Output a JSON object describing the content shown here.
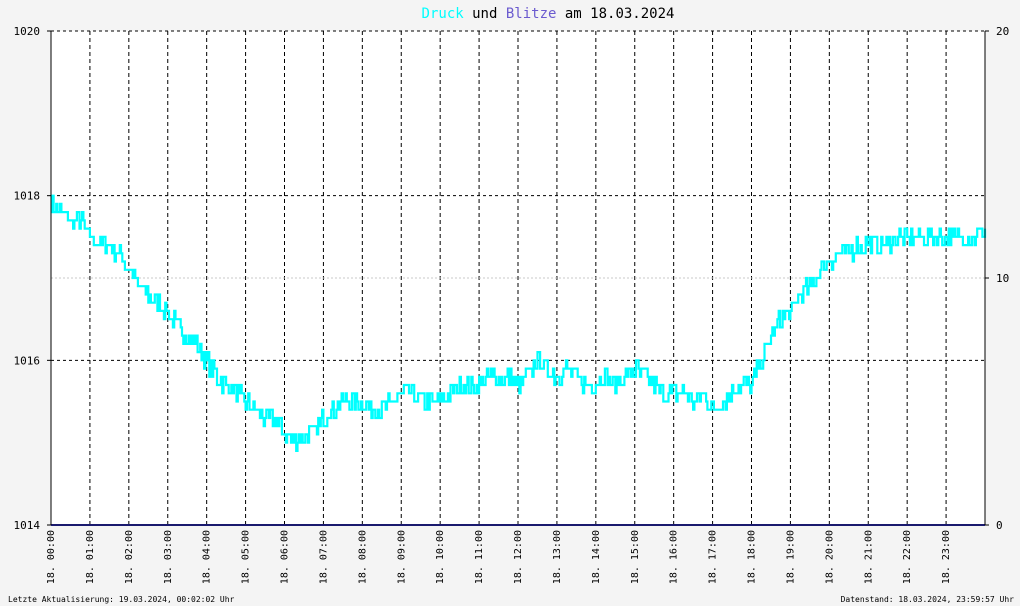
{
  "title": {
    "part1": "Druck",
    "part2": " und ",
    "part3": "Blitze",
    "part4": " am 18.03.2024"
  },
  "colors": {
    "druck": "#00ffff",
    "blitze": "#6b5bcf",
    "baseline": "#1a1a6e",
    "plot_bg": "#ffffff",
    "page_bg": "#f4f4f4",
    "grid": "#000000",
    "text": "#000000"
  },
  "footer": {
    "left": "Letzte Aktualisierung: 19.03.2024, 00:02:02 Uhr",
    "right": "Datenstand: 18.03.2024, 23:59:57 Uhr"
  },
  "chart_data": {
    "type": "line",
    "title": "Druck und Blitze am 18.03.2024",
    "y_left": {
      "min": 1014,
      "max": 1020,
      "ticks": [
        "1014",
        "1016",
        "1018",
        "1020"
      ]
    },
    "y_right": {
      "min": 0,
      "max": 20,
      "ticks": [
        "0",
        "10",
        "20"
      ]
    },
    "x_range_hours": [
      0,
      24
    ],
    "x_ticks": [
      "18. 00:00",
      "18. 01:00",
      "18. 02:00",
      "18. 03:00",
      "18. 04:00",
      "18. 05:00",
      "18. 06:00",
      "18. 07:00",
      "18. 08:00",
      "18. 09:00",
      "18. 10:00",
      "18. 11:00",
      "18. 12:00",
      "18. 13:00",
      "18. 14:00",
      "18. 15:00",
      "18. 16:00",
      "18. 17:00",
      "18. 18:00",
      "18. 19:00",
      "18. 20:00",
      "18. 21:00",
      "18. 22:00",
      "18. 23:00"
    ],
    "grid": true,
    "series": [
      {
        "name": "Druck",
        "axis": "left",
        "x": [
          0,
          0.25,
          0.5,
          0.75,
          1,
          1.25,
          1.5,
          1.75,
          2,
          2.25,
          2.5,
          2.75,
          3,
          3.25,
          3.5,
          3.75,
          4,
          4.25,
          4.5,
          4.75,
          5,
          5.25,
          5.5,
          5.75,
          6,
          6.25,
          6.5,
          6.75,
          7,
          7.25,
          7.5,
          7.75,
          8,
          8.25,
          8.5,
          8.75,
          9,
          9.25,
          9.5,
          9.75,
          10,
          10.25,
          10.5,
          10.75,
          11,
          11.25,
          11.5,
          11.75,
          12,
          12.25,
          12.5,
          12.75,
          13,
          13.25,
          13.5,
          13.75,
          14,
          14.25,
          14.5,
          14.75,
          15,
          15.25,
          15.5,
          15.75,
          16,
          16.25,
          16.5,
          16.75,
          17,
          17.25,
          17.5,
          17.75,
          18,
          18.25,
          18.5,
          18.75,
          19,
          19.25,
          19.5,
          19.75,
          20,
          20.25,
          20.5,
          20.75,
          21,
          21.25,
          21.5,
          21.75,
          22,
          22.25,
          22.5,
          22.75,
          23,
          23.25,
          23.5,
          23.75,
          24
        ],
        "values": [
          1017.9,
          1017.8,
          1017.7,
          1017.7,
          1017.5,
          1017.4,
          1017.4,
          1017.3,
          1017.1,
          1016.9,
          1016.8,
          1016.7,
          1016.6,
          1016.4,
          1016.3,
          1016.2,
          1016.0,
          1015.8,
          1015.7,
          1015.6,
          1015.5,
          1015.4,
          1015.3,
          1015.3,
          1015.1,
          1015.0,
          1015.1,
          1015.1,
          1015.3,
          1015.4,
          1015.5,
          1015.5,
          1015.5,
          1015.4,
          1015.4,
          1015.5,
          1015.6,
          1015.6,
          1015.5,
          1015.5,
          1015.5,
          1015.6,
          1015.7,
          1015.7,
          1015.7,
          1015.8,
          1015.8,
          1015.8,
          1015.7,
          1015.8,
          1016.0,
          1015.9,
          1015.8,
          1015.9,
          1015.8,
          1015.7,
          1015.7,
          1015.8,
          1015.7,
          1015.8,
          1015.9,
          1015.8,
          1015.7,
          1015.6,
          1015.6,
          1015.6,
          1015.5,
          1015.6,
          1015.4,
          1015.5,
          1015.6,
          1015.7,
          1015.7,
          1016.0,
          1016.3,
          1016.5,
          1016.6,
          1016.8,
          1016.9,
          1017.1,
          1017.2,
          1017.3,
          1017.3,
          1017.4,
          1017.4,
          1017.4,
          1017.4,
          1017.5,
          1017.5,
          1017.5,
          1017.5,
          1017.5,
          1017.5,
          1017.5,
          1017.5,
          1017.5,
          1017.6
        ]
      },
      {
        "name": "Blitze",
        "axis": "right",
        "x": [
          0,
          24
        ],
        "values": [
          0,
          0
        ]
      }
    ]
  }
}
